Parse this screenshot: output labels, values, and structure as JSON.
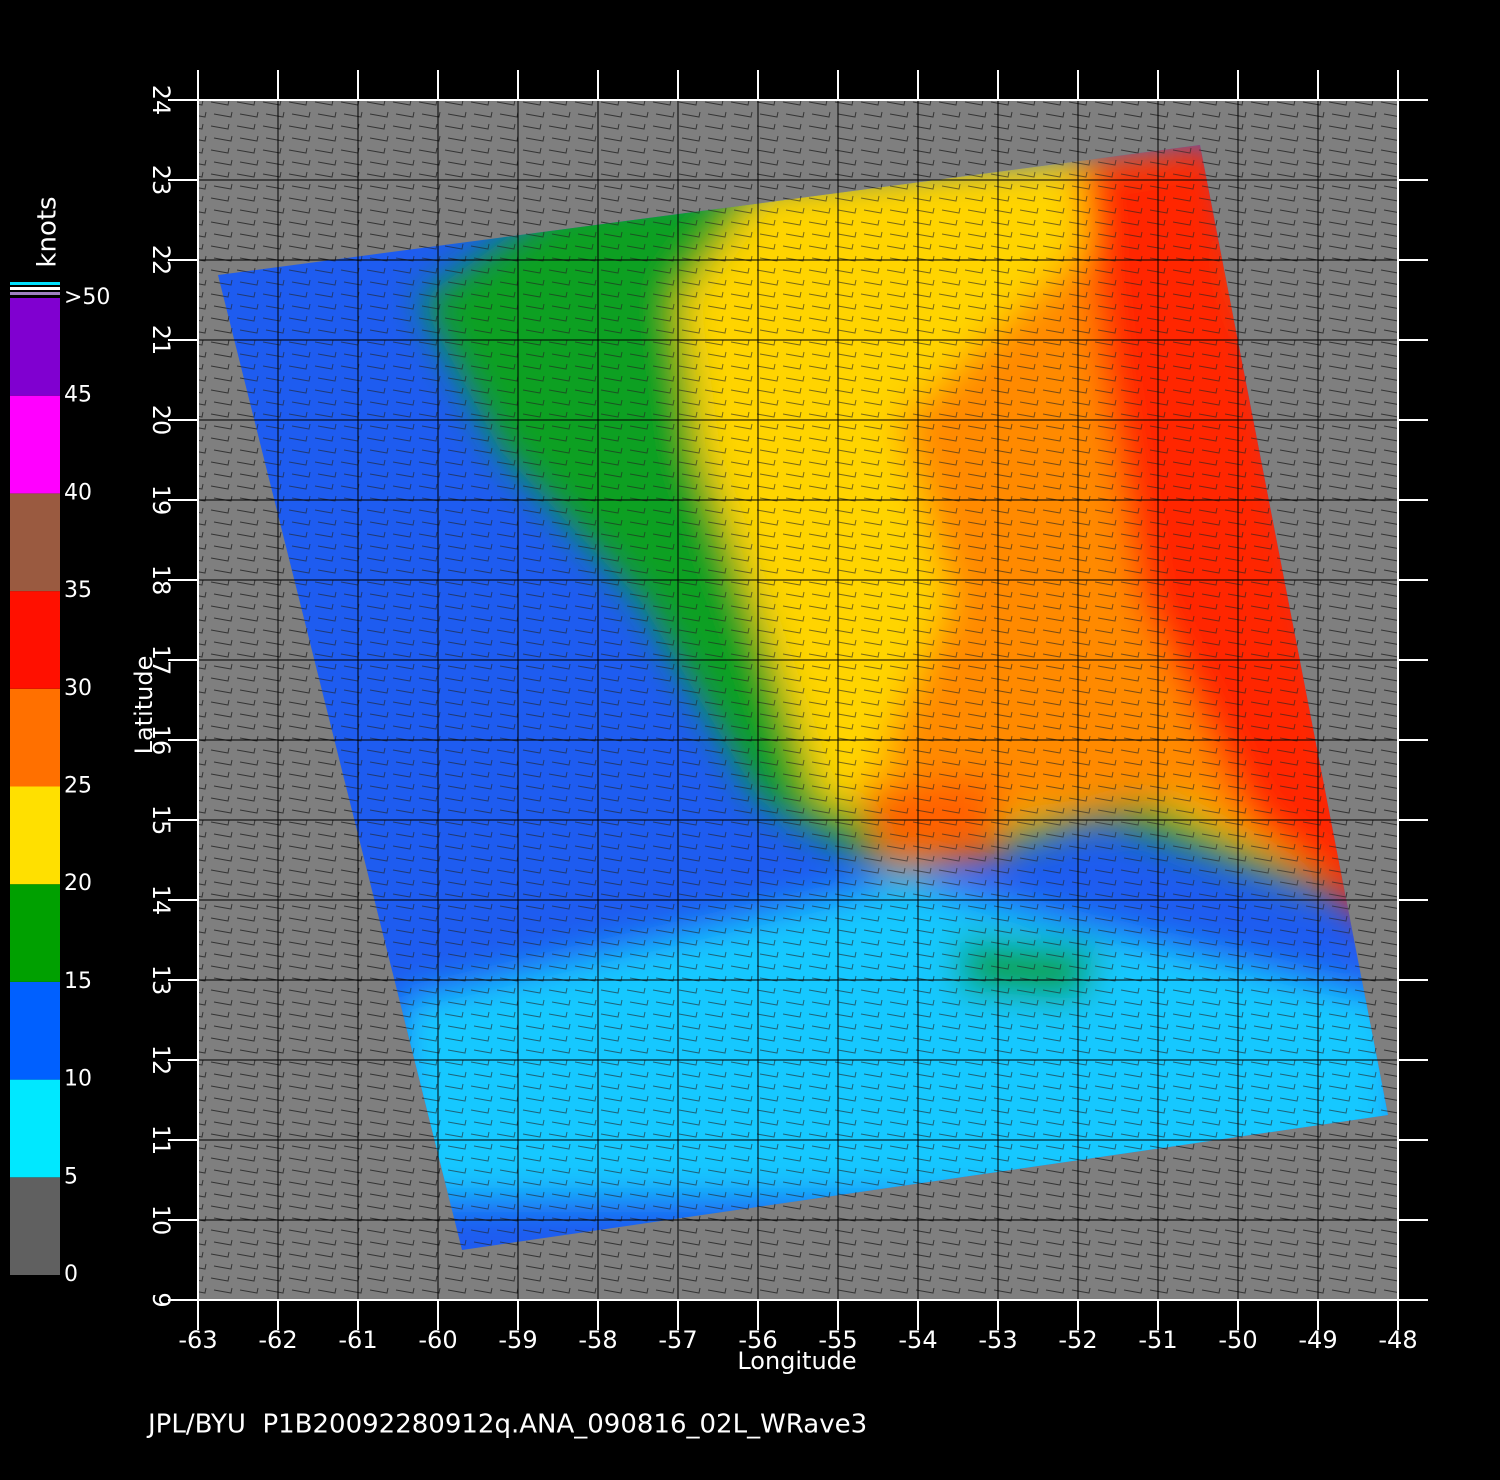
{
  "map": {
    "colorbar": {
      "label": "knots",
      "ticks": [
        0,
        5,
        10,
        15,
        20,
        25,
        30,
        35,
        40,
        45,
        {
          "value": 50,
          "label": ">50"
        }
      ],
      "colors": [
        "#606060",
        "#00e8ff",
        "#0060ff",
        "#00a000",
        "#ffe000",
        "#ff7000",
        "#ff1000",
        "#9a5a40",
        "#ff00ff",
        "#8000d0"
      ]
    },
    "x_axis": {
      "label": "Longitude",
      "ticks": [
        -63,
        -62,
        -61,
        -60,
        -59,
        -58,
        -57,
        -56,
        -55,
        -54,
        -53,
        -52,
        -51,
        -50,
        -49,
        -48
      ]
    },
    "y_axis": {
      "label": "Latitude",
      "ticks": [
        9,
        10,
        11,
        12,
        13,
        14,
        15,
        16,
        17,
        18,
        19,
        20,
        21,
        22,
        23,
        24
      ]
    },
    "footer": "JPL/BYU  P1B20092280912q.ANA_090816_02L_WRave3"
  }
}
